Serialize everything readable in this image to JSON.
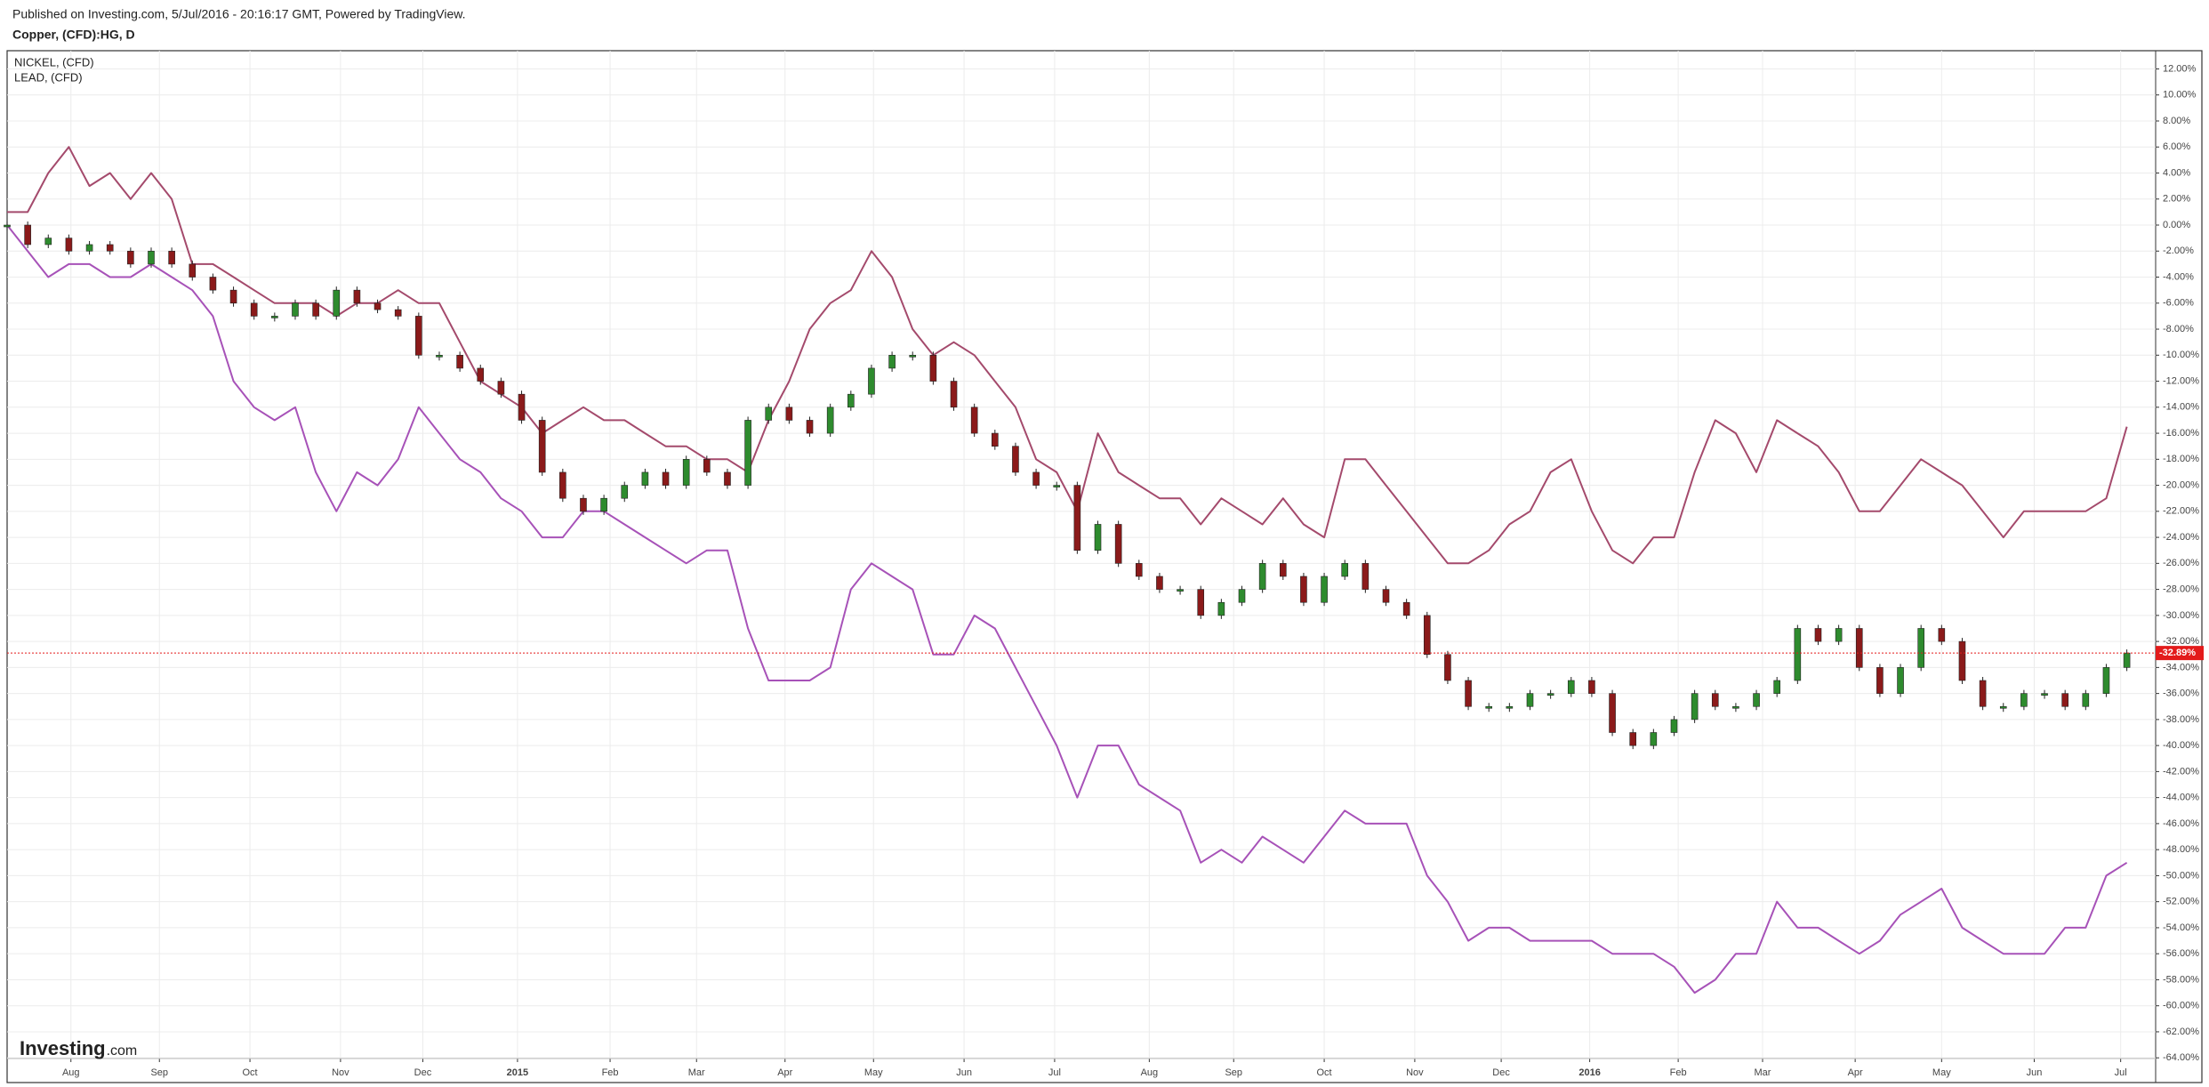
{
  "chart_data": {
    "type": "candle-compare",
    "title": "Published on Investing.com, 5/Jul/2016 - 20:16:17 GMT, Powered by TradingView.",
    "subtitle": "Copper, (CFD):HG, D",
    "watermark": [
      "Investing",
      ".com"
    ],
    "grid": true,
    "legend": "top-left",
    "xlim": [
      0,
      104.4
    ],
    "ylim": [
      -65.9,
      13.4
    ],
    "xticks": [
      {
        "value": 3.1,
        "label": "Aug"
      },
      {
        "value": 7.4,
        "label": "Sep"
      },
      {
        "value": 11.8,
        "label": "Oct"
      },
      {
        "value": 16.2,
        "label": "Nov"
      },
      {
        "value": 20.2,
        "label": "Dec"
      },
      {
        "value": 24.8,
        "label": "2015"
      },
      {
        "value": 29.3,
        "label": "Feb"
      },
      {
        "value": 33.5,
        "label": "Mar"
      },
      {
        "value": 37.8,
        "label": "Apr"
      },
      {
        "value": 42.1,
        "label": "May"
      },
      {
        "value": 46.5,
        "label": "Jun"
      },
      {
        "value": 50.9,
        "label": "Jul"
      },
      {
        "value": 55.5,
        "label": "Aug"
      },
      {
        "value": 59.6,
        "label": "Sep"
      },
      {
        "value": 64.0,
        "label": "Oct"
      },
      {
        "value": 68.4,
        "label": "Nov"
      },
      {
        "value": 72.6,
        "label": "Dec"
      },
      {
        "value": 76.9,
        "label": "2016"
      },
      {
        "value": 81.2,
        "label": "Feb"
      },
      {
        "value": 85.3,
        "label": "Mar"
      },
      {
        "value": 89.8,
        "label": "Apr"
      },
      {
        "value": 94.0,
        "label": "May"
      },
      {
        "value": 98.5,
        "label": "Jun"
      },
      {
        "value": 102.7,
        "label": "Jul"
      }
    ],
    "yticks": [
      {
        "value": 12,
        "label": "12.00%"
      },
      {
        "value": 10,
        "label": "10.00%"
      },
      {
        "value": 8,
        "label": "8.00%"
      },
      {
        "value": 6,
        "label": "6.00%"
      },
      {
        "value": 4,
        "label": "4.00%"
      },
      {
        "value": 2,
        "label": "2.00%"
      },
      {
        "value": 0,
        "label": "0.00%"
      },
      {
        "value": -2,
        "label": "-2.00%"
      },
      {
        "value": -4,
        "label": "-4.00%"
      },
      {
        "value": -6,
        "label": "-6.00%"
      },
      {
        "value": -8,
        "label": "-8.00%"
      },
      {
        "value": -10,
        "label": "-10.00%"
      },
      {
        "value": -12,
        "label": "-12.00%"
      },
      {
        "value": -14,
        "label": "-14.00%"
      },
      {
        "value": -16,
        "label": "-16.00%"
      },
      {
        "value": -18,
        "label": "-18.00%"
      },
      {
        "value": -20,
        "label": "-20.00%"
      },
      {
        "value": -22,
        "label": "-22.00%"
      },
      {
        "value": -24,
        "label": "-24.00%"
      },
      {
        "value": -26,
        "label": "-26.00%"
      },
      {
        "value": -28,
        "label": "-28.00%"
      },
      {
        "value": -30,
        "label": "-30.00%"
      },
      {
        "value": -32,
        "label": "-32.00%"
      },
      {
        "value": -34,
        "label": "-34.00%"
      },
      {
        "value": -36,
        "label": "-36.00%"
      },
      {
        "value": -38,
        "label": "-38.00%"
      },
      {
        "value": -40,
        "label": "-40.00%"
      },
      {
        "value": -42,
        "label": "-42.00%"
      },
      {
        "value": -44,
        "label": "-44.00%"
      },
      {
        "value": -46,
        "label": "-46.00%"
      },
      {
        "value": -48,
        "label": "-48.00%"
      },
      {
        "value": -50,
        "label": "-50.00%"
      },
      {
        "value": -52,
        "label": "-52.00%"
      },
      {
        "value": -54,
        "label": "-54.00%"
      },
      {
        "value": -56,
        "label": "-56.00%"
      },
      {
        "value": -58,
        "label": "-58.00%"
      },
      {
        "value": -60,
        "label": "-60.00%"
      },
      {
        "value": -62,
        "label": "-62.00%"
      },
      {
        "value": -64,
        "label": "-64.00%"
      }
    ],
    "candles": {
      "color_up": "#2e8b2e",
      "color_down": "#8b1a1a",
      "values": [
        0,
        -1.5,
        -1,
        -2,
        -1.5,
        -2,
        -3,
        -2,
        -3,
        -4,
        -5,
        -6,
        -7,
        -7,
        -6,
        -7,
        -5,
        -6,
        -6.5,
        -7,
        -10,
        -10,
        -11,
        -12,
        -13,
        -15,
        -19,
        -21,
        -22,
        -21,
        -20,
        -19,
        -20,
        -18,
        -19,
        -20,
        -15,
        -14,
        -15,
        -16,
        -14,
        -13,
        -11,
        -10,
        -10,
        -12,
        -14,
        -16,
        -17,
        -19,
        -20,
        -20,
        -25,
        -23,
        -26,
        -27,
        -28,
        -28,
        -30,
        -29,
        -28,
        -26,
        -27,
        -29,
        -27,
        -26,
        -28,
        -29,
        -30,
        -33,
        -35,
        -37,
        -37,
        -37,
        -36,
        -36,
        -35,
        -36,
        -39,
        -40,
        -39,
        -38,
        -36,
        -37,
        -37,
        -36,
        -35,
        -31,
        -32,
        -31,
        -34,
        -36,
        -34,
        -31,
        -32,
        -35,
        -37,
        -37,
        -36,
        -36,
        -37,
        -36,
        -34,
        -32.89
      ]
    },
    "price_tag": {
      "value": -32.89,
      "label": "-32.89%",
      "color": "#e31b1b"
    },
    "series": [
      {
        "name": "NICKEL,  (CFD)",
        "color": "#a44a6c",
        "values": [
          1,
          1,
          4,
          6,
          3,
          4,
          2,
          4,
          2,
          -3,
          -3,
          -4,
          -5,
          -6,
          -6,
          -6,
          -7,
          -6,
          -6,
          -5,
          -6,
          -6,
          -9,
          -12,
          -13,
          -14,
          -16,
          -15,
          -14,
          -15,
          -15,
          -16,
          -17,
          -17,
          -18,
          -18,
          -19,
          -15,
          -12,
          -8,
          -6,
          -5,
          -2,
          -4,
          -8,
          -10,
          -9,
          -10,
          -12,
          -14,
          -18,
          -19,
          -22,
          -16,
          -19,
          -20,
          -21,
          -21,
          -23,
          -21,
          -22,
          -23,
          -21,
          -23,
          -24,
          -18,
          -18,
          -20,
          -22,
          -24,
          -26,
          -26,
          -25,
          -23,
          -22,
          -19,
          -18,
          -22,
          -25,
          -26,
          -24,
          -24,
          -19,
          -15,
          -16,
          -19,
          -15,
          -16,
          -17,
          -19,
          -22,
          -22,
          -20,
          -18,
          -19,
          -20,
          -22,
          -24,
          -22,
          -22,
          -22,
          -22,
          -21,
          -15.5
        ]
      },
      {
        "name": "LEAD,  (CFD)",
        "color": "#a752b8",
        "values": [
          0,
          -2,
          -4,
          -3,
          -3,
          -4,
          -4,
          -3,
          -4,
          -5,
          -7,
          -12,
          -14,
          -15,
          -14,
          -19,
          -22,
          -19,
          -20,
          -18,
          -14,
          -16,
          -18,
          -19,
          -21,
          -22,
          -24,
          -24,
          -22,
          -22,
          -23,
          -24,
          -25,
          -26,
          -25,
          -25,
          -31,
          -35,
          -35,
          -35,
          -34,
          -28,
          -26,
          -27,
          -28,
          -33,
          -33,
          -30,
          -31,
          -34,
          -37,
          -40,
          -44,
          -40,
          -40,
          -43,
          -44,
          -45,
          -49,
          -48,
          -49,
          -47,
          -48,
          -49,
          -47,
          -45,
          -46,
          -46,
          -46,
          -50,
          -52,
          -55,
          -54,
          -54,
          -55,
          -55,
          -55,
          -55,
          -56,
          -56,
          -56,
          -57,
          -59,
          -58,
          -56,
          -56,
          -52,
          -54,
          -54,
          -55,
          -56,
          -55,
          -53,
          -52,
          -51,
          -54,
          -55,
          -56,
          -56,
          -56,
          -54,
          -54,
          -50,
          -49
        ]
      }
    ]
  }
}
